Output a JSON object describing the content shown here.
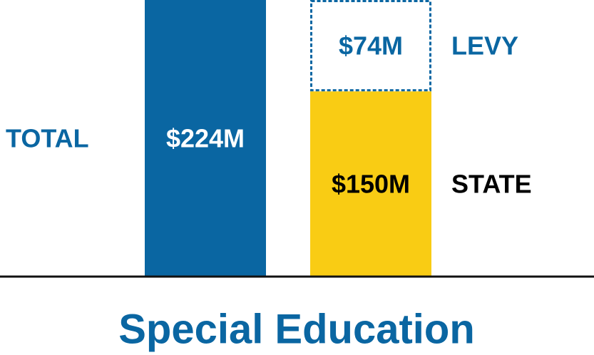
{
  "chart_data": {
    "type": "stacked_bar",
    "title": "Special Education",
    "ylim": [
      0,
      224
    ],
    "total": {
      "name": "TOTAL",
      "value": 224,
      "value_label": "$224M",
      "color": "#0a66a2",
      "label_color": "#ffffff"
    },
    "stack": [
      {
        "name": "STATE",
        "value": 150,
        "value_label": "$150M",
        "color": "#f9cc14",
        "label_color": "#000000",
        "name_color": "#000000",
        "style": "solid"
      },
      {
        "name": "LEVY",
        "value": 74,
        "value_label": "$74M",
        "color": "#0a66a2",
        "label_color": "#0a66a2",
        "name_color": "#0a66a2",
        "style": "dashed"
      }
    ]
  }
}
